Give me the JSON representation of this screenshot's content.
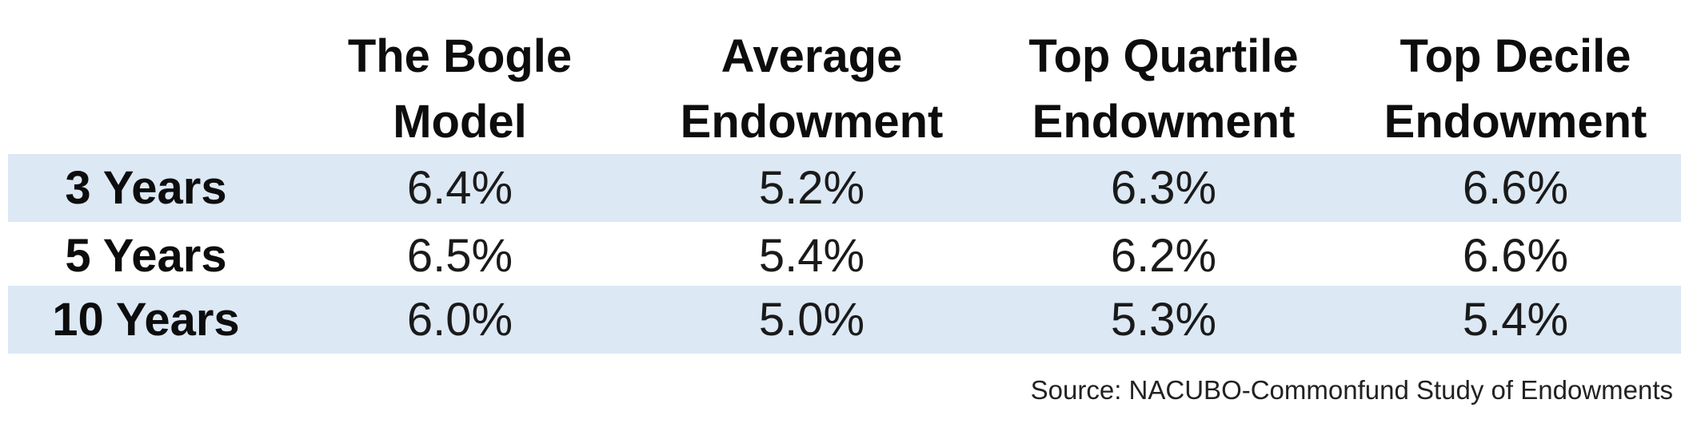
{
  "chart_data": {
    "type": "table",
    "corner": "",
    "columns": [
      {
        "line1": "The Bogle",
        "line2": "Model"
      },
      {
        "line1": "Average",
        "line2": "Endowment"
      },
      {
        "line1": "Top Quartile",
        "line2": "Endowment"
      },
      {
        "line1": "Top Decile",
        "line2": "Endowment"
      }
    ],
    "rows": [
      {
        "label": "3 Years",
        "values": [
          "6.4%",
          "5.2%",
          "6.3%",
          "6.6%"
        ]
      },
      {
        "label": "5 Years",
        "values": [
          "6.5%",
          "5.4%",
          "6.2%",
          "6.6%"
        ]
      },
      {
        "label": "10 Years",
        "values": [
          "6.0%",
          "5.0%",
          "5.3%",
          "5.4%"
        ]
      }
    ],
    "source": "Source: NACUBO-Commonfund Study of Endowments",
    "colors": {
      "band": "#dce8f4",
      "text": "#111111"
    }
  }
}
